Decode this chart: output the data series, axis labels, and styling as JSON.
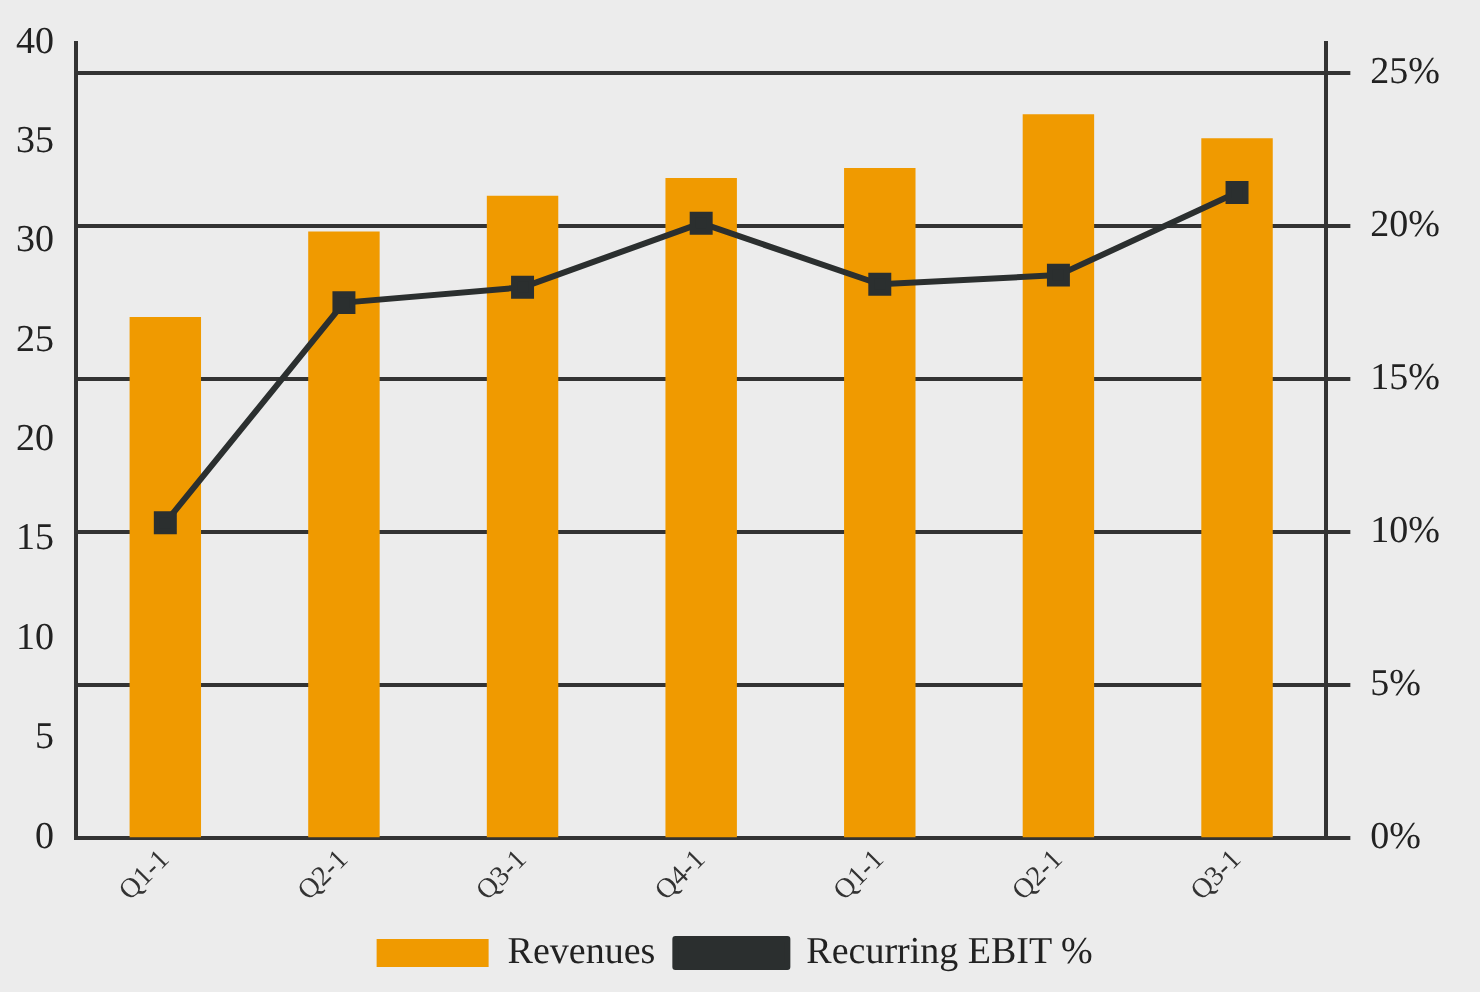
{
  "chart_data": {
    "type": "bar",
    "categories": [
      "Q1-1",
      "Q2-1",
      "Q3-1",
      "Q4-1",
      "Q1-1",
      "Q2-1",
      "Q3-1"
    ],
    "series": [
      {
        "name": "Revenues",
        "color": "#f09a00",
        "values": [
          26.2,
          30.5,
          32.3,
          33.2,
          33.7,
          36.4,
          35.2
        ]
      },
      {
        "name": "Recurring EBIT %",
        "type": "line",
        "axis": "y2",
        "color": "#2b2f2f",
        "marker": "square",
        "values": [
          10.3,
          17.5,
          18.0,
          20.1,
          18.1,
          18.4,
          21.1
        ]
      }
    ],
    "ylim": [
      0,
      40
    ],
    "yticks": [
      0,
      5,
      10,
      15,
      20,
      25,
      30,
      35,
      40
    ],
    "y2lim": [
      0,
      26
    ],
    "y2ticks": [
      {
        "value": 0,
        "label": "0%"
      },
      {
        "value": 5,
        "label": "5%"
      },
      {
        "value": 10,
        "label": "10%"
      },
      {
        "value": 15,
        "label": "15%"
      },
      {
        "value": 20,
        "label": "20%"
      },
      {
        "value": 25,
        "label": "25%"
      }
    ],
    "grid": "y2",
    "legend": "bottom"
  }
}
